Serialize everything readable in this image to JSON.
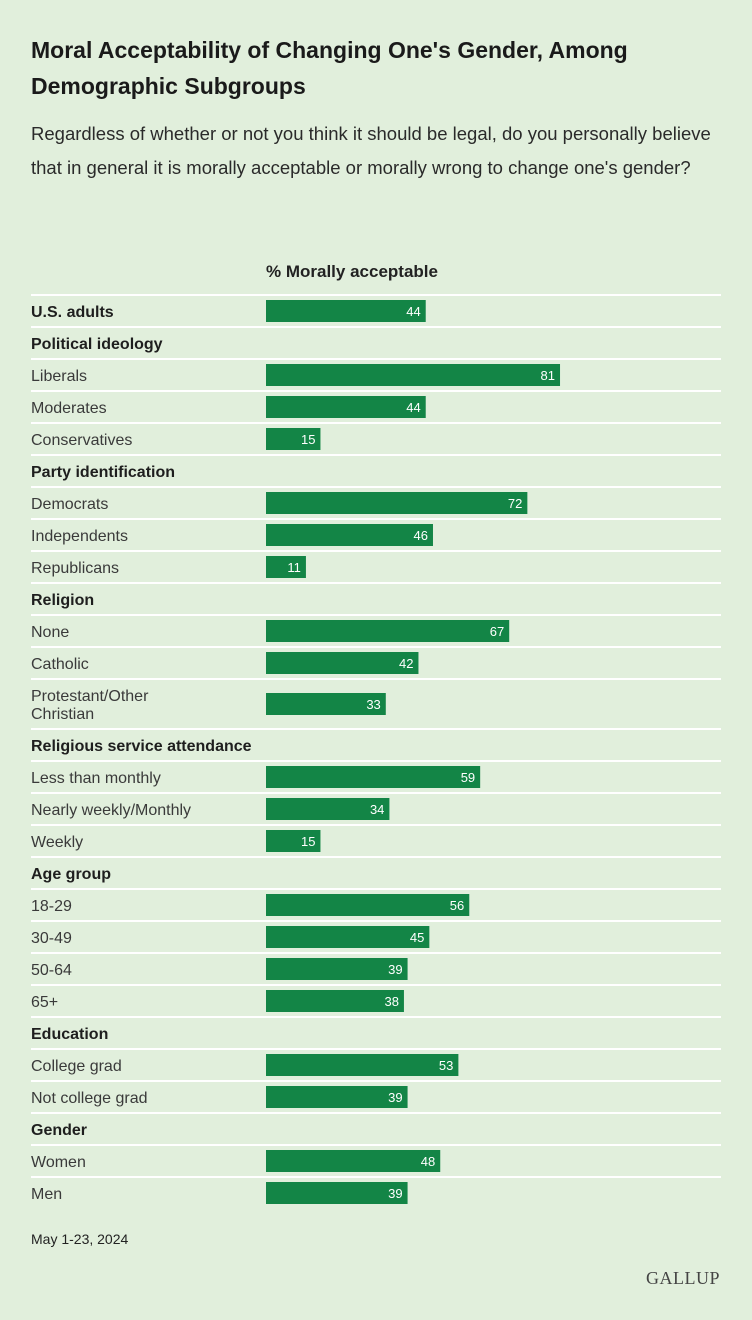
{
  "title": "Moral Acceptability of Changing One's Gender, Among Demographic Subgroups",
  "subtitle": "Regardless of whether or not you think it should be legal, do you personally believe that in general it is morally acceptable or morally wrong to change one's gender?",
  "date": "May 1-23, 2024",
  "brand": "GALLUP",
  "colors": {
    "background": "#e1efdc",
    "bar": "#138546",
    "divider": "#ffffff"
  },
  "chart_data": {
    "type": "bar",
    "orientation": "horizontal",
    "series_name": "% Morally acceptable",
    "xlim": [
      0,
      100
    ],
    "rows": [
      {
        "kind": "item",
        "label": "U.S. adults",
        "value": 44,
        "bold": true
      },
      {
        "kind": "heading",
        "label": "Political ideology"
      },
      {
        "kind": "item",
        "label": "Liberals",
        "value": 81
      },
      {
        "kind": "item",
        "label": "Moderates",
        "value": 44
      },
      {
        "kind": "item",
        "label": "Conservatives",
        "value": 15
      },
      {
        "kind": "heading",
        "label": "Party identification"
      },
      {
        "kind": "item",
        "label": "Democrats",
        "value": 72
      },
      {
        "kind": "item",
        "label": "Independents",
        "value": 46
      },
      {
        "kind": "item",
        "label": "Republicans",
        "value": 11
      },
      {
        "kind": "heading",
        "label": "Religion"
      },
      {
        "kind": "item",
        "label": "None",
        "value": 67
      },
      {
        "kind": "item",
        "label": "Catholic",
        "value": 42
      },
      {
        "kind": "item",
        "label": "Protestant/Other Christian",
        "label_lines": [
          "Protestant/Other",
          "Christian"
        ],
        "value": 33
      },
      {
        "kind": "heading",
        "label": "Religious service attendance"
      },
      {
        "kind": "item",
        "label": "Less than monthly",
        "value": 59
      },
      {
        "kind": "item",
        "label": "Nearly weekly/Monthly",
        "value": 34
      },
      {
        "kind": "item",
        "label": "Weekly",
        "value": 15
      },
      {
        "kind": "heading",
        "label": "Age group"
      },
      {
        "kind": "item",
        "label": "18-29",
        "value": 56
      },
      {
        "kind": "item",
        "label": "30-49",
        "value": 45
      },
      {
        "kind": "item",
        "label": "50-64",
        "value": 39
      },
      {
        "kind": "item",
        "label": "65+",
        "value": 38
      },
      {
        "kind": "heading",
        "label": "Education"
      },
      {
        "kind": "item",
        "label": "College grad",
        "value": 53
      },
      {
        "kind": "item",
        "label": "Not college grad",
        "value": 39
      },
      {
        "kind": "heading",
        "label": "Gender"
      },
      {
        "kind": "item",
        "label": "Women",
        "value": 48
      },
      {
        "kind": "item",
        "label": "Men",
        "value": 39
      }
    ]
  }
}
